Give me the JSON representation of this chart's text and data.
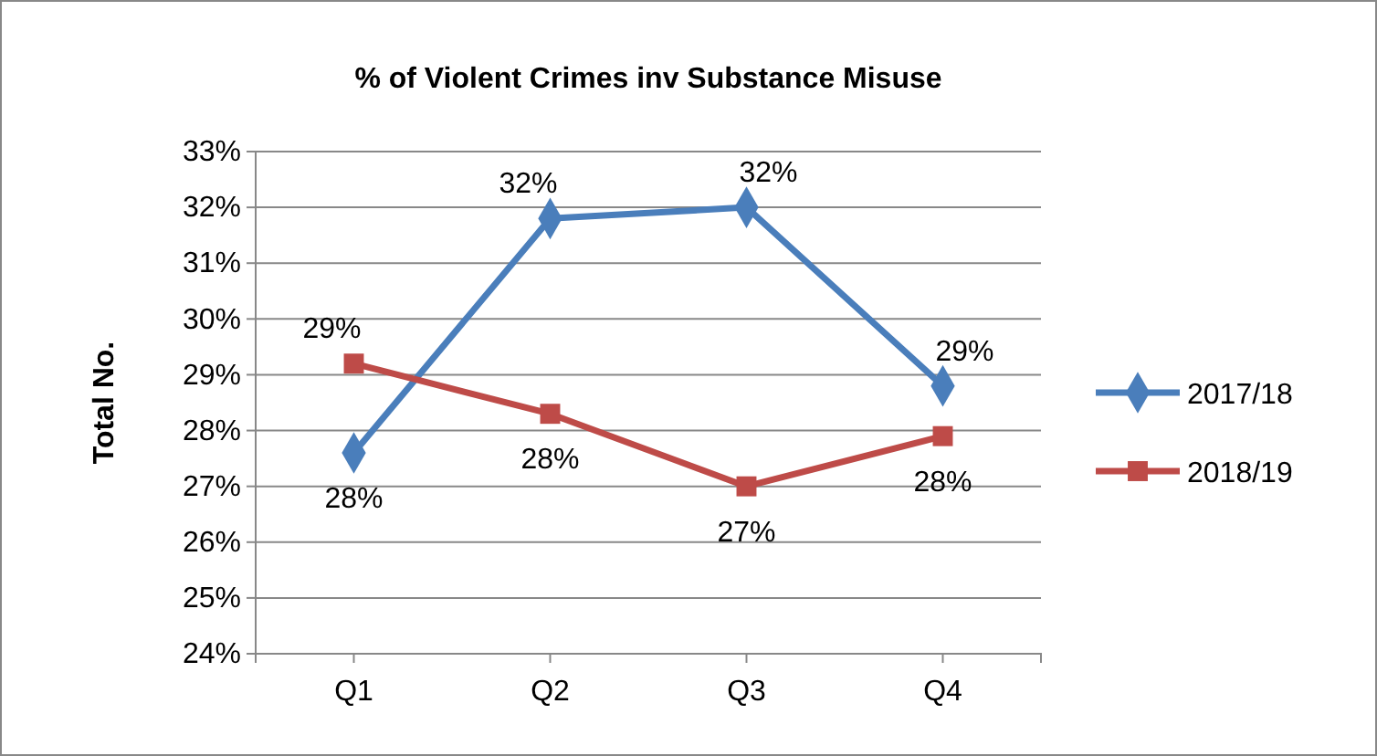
{
  "chart_data": {
    "type": "line",
    "title": "% of Violent Crimes inv Substance Misuse",
    "ylabel": "Total No.",
    "categories": [
      "Q1",
      "Q2",
      "Q3",
      "Q4"
    ],
    "series": [
      {
        "name": "2017/18",
        "color": "#4a7ebb",
        "marker": "diamond",
        "values": [
          27.6,
          31.8,
          32.0,
          28.8
        ],
        "value_labels": [
          "28%",
          "32%",
          "32%",
          "29%"
        ]
      },
      {
        "name": "2018/19",
        "color": "#be4b48",
        "marker": "square",
        "values": [
          29.2,
          28.3,
          27.0,
          27.9
        ],
        "value_labels": [
          "29%",
          "28%",
          "27%",
          "28%"
        ]
      }
    ],
    "ylim": [
      24,
      33
    ],
    "yticks": [
      {
        "value": 24,
        "label": "24%"
      },
      {
        "value": 25,
        "label": "25%"
      },
      {
        "value": 26,
        "label": "26%"
      },
      {
        "value": 27,
        "label": "27%"
      },
      {
        "value": 28,
        "label": "28%"
      },
      {
        "value": 29,
        "label": "29%"
      },
      {
        "value": 30,
        "label": "30%"
      },
      {
        "value": 31,
        "label": "31%"
      },
      {
        "value": 32,
        "label": "32%"
      },
      {
        "value": 33,
        "label": "33%"
      }
    ],
    "grid": "y",
    "legend": "right",
    "line_style": "solid"
  }
}
